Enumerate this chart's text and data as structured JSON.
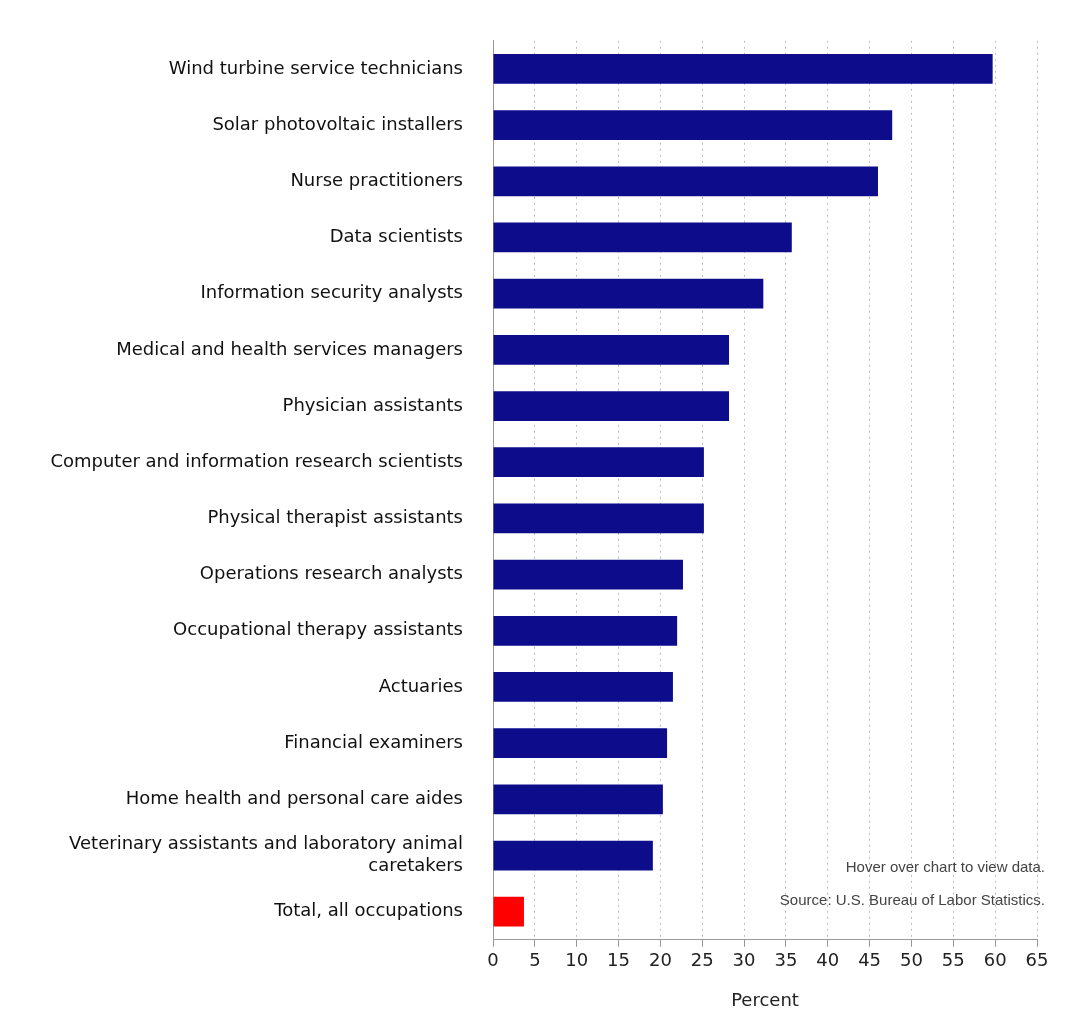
{
  "chart_data": {
    "type": "bar",
    "orientation": "horizontal",
    "categories": [
      "Wind turbine service technicians",
      "Solar photovoltaic installers",
      "Nurse practitioners",
      "Data scientists",
      "Information security analysts",
      "Medical and health services managers",
      "Physician assistants",
      "Computer and information research scientists",
      "Physical therapist assistants",
      "Operations research analysts",
      "Occupational therapy assistants",
      "Actuaries",
      "Financial examiners",
      "Home health and personal care aides",
      "Veterinary assistants and laboratory animal caretakers",
      "Total, all occupations"
    ],
    "values": [
      59.7,
      47.7,
      46.0,
      35.7,
      32.3,
      28.2,
      28.2,
      25.2,
      25.2,
      22.7,
      22.0,
      21.5,
      20.8,
      20.3,
      19.1,
      3.7
    ],
    "colors": [
      "#0d0d8c",
      "#0d0d8c",
      "#0d0d8c",
      "#0d0d8c",
      "#0d0d8c",
      "#0d0d8c",
      "#0d0d8c",
      "#0d0d8c",
      "#0d0d8c",
      "#0d0d8c",
      "#0d0d8c",
      "#0d0d8c",
      "#0d0d8c",
      "#0d0d8c",
      "#0d0d8c",
      "#ff0000"
    ],
    "xlabel": "Percent",
    "xlim": [
      0,
      65
    ],
    "xticks": [
      0,
      5,
      10,
      15,
      20,
      25,
      30,
      35,
      40,
      45,
      50,
      55,
      60,
      65
    ],
    "grid": "x",
    "annotations": [
      "Hover over chart to view data.",
      "Source: U.S. Bureau of Labor Statistics."
    ]
  }
}
